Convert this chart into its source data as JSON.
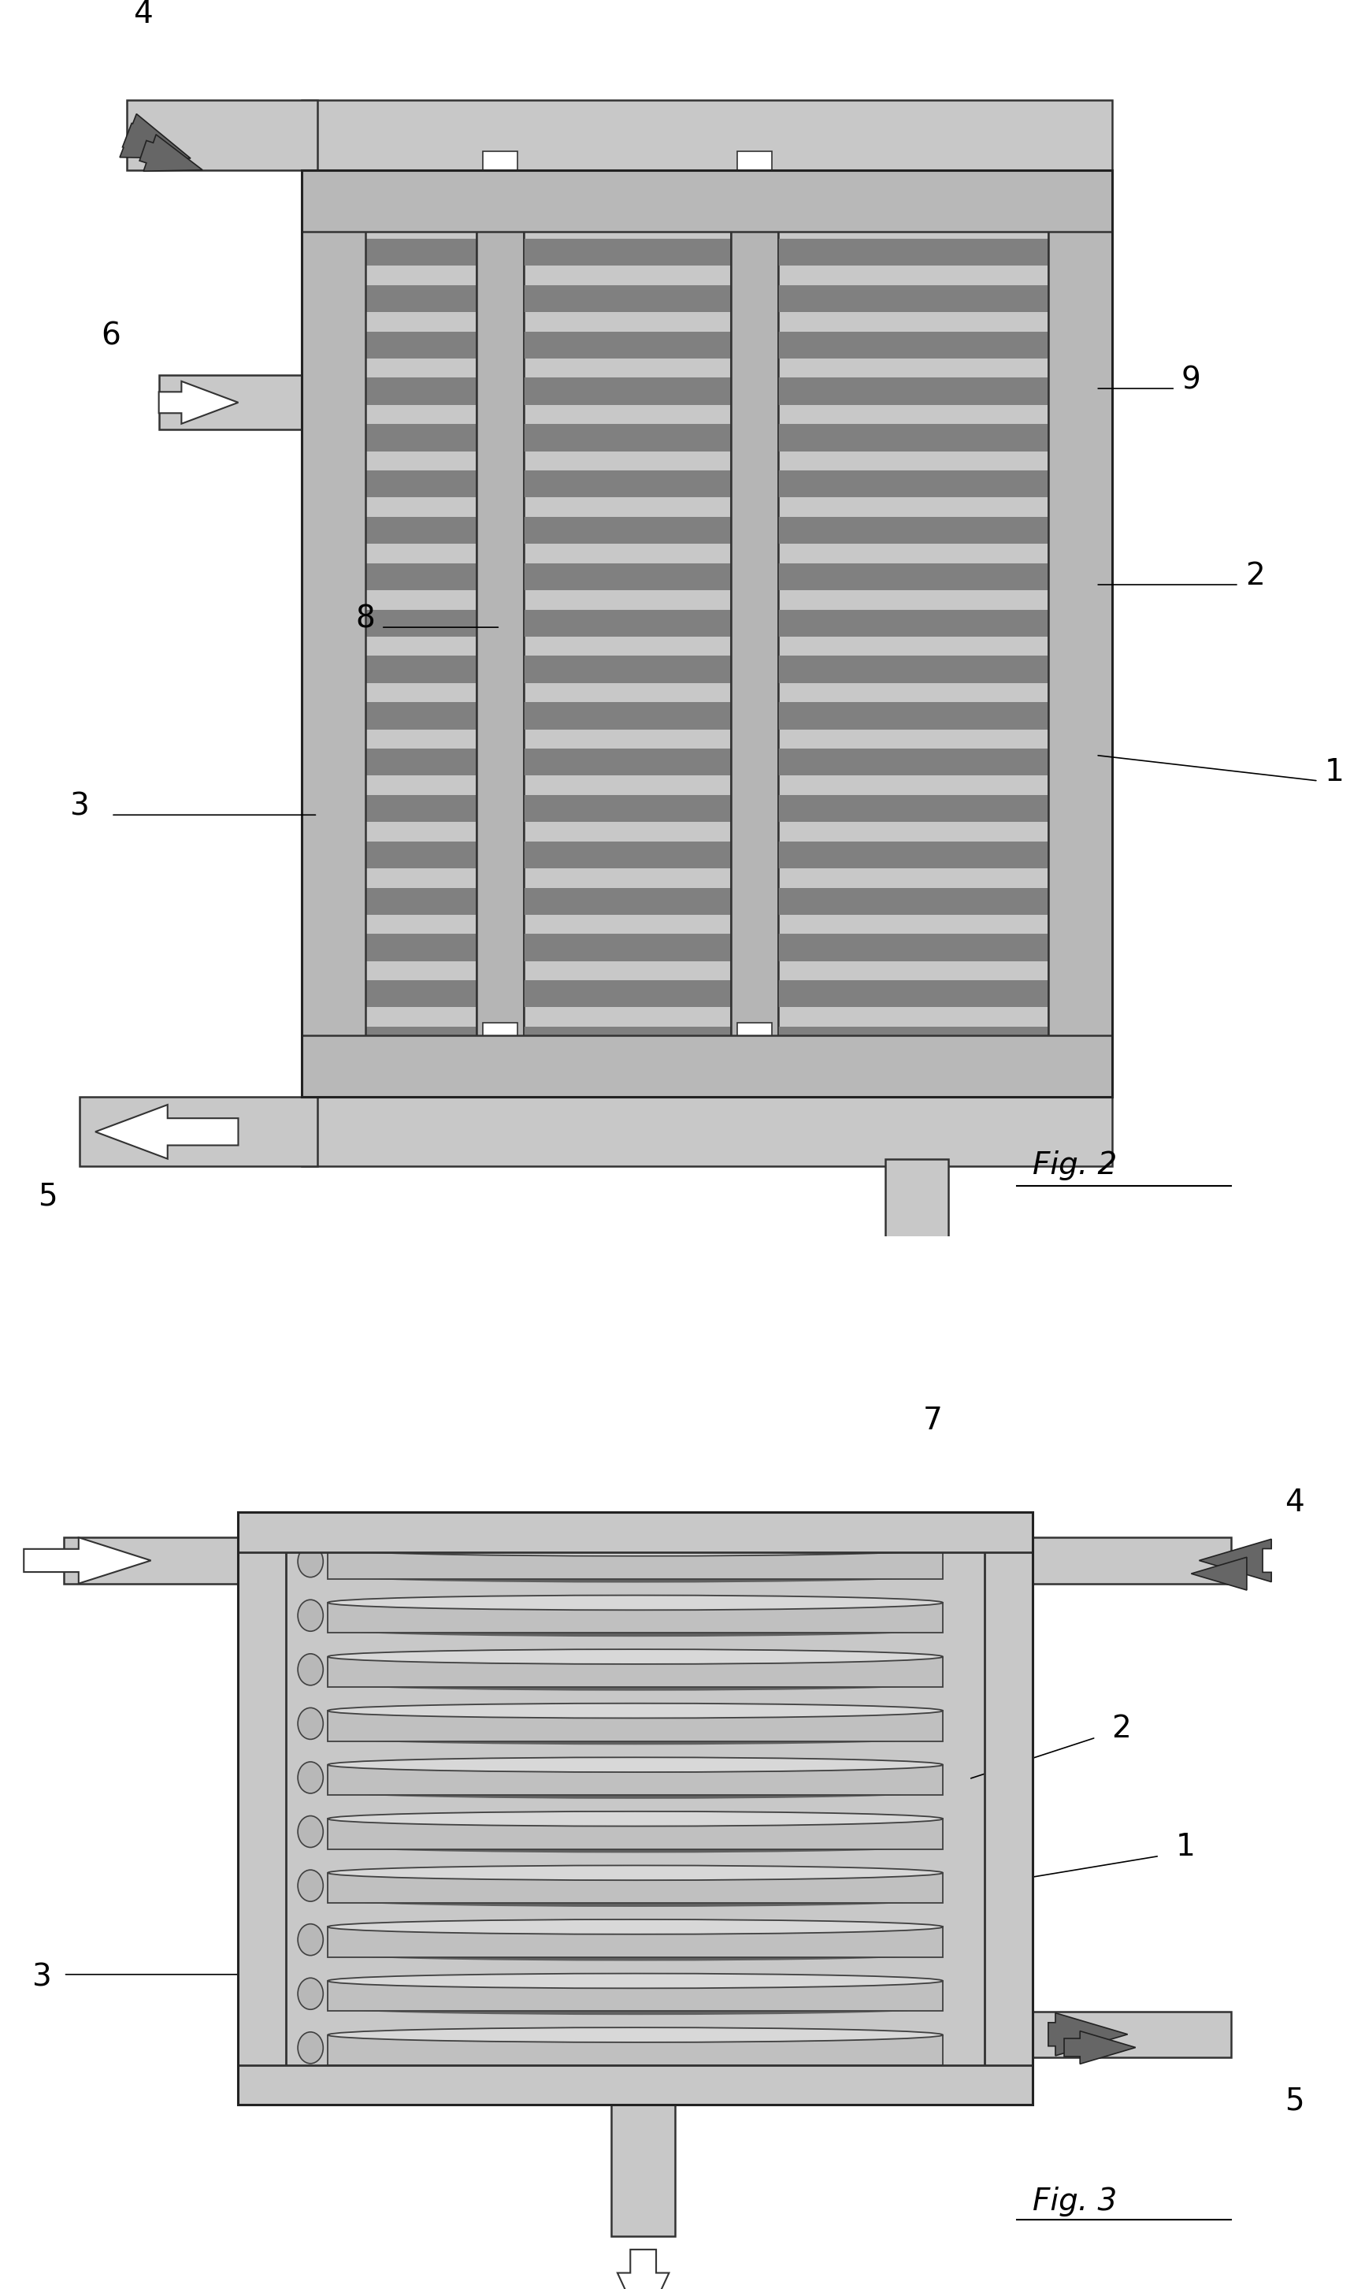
{
  "bg_color": "#ffffff",
  "fig_width": 17.14,
  "fig_height": 29.05,
  "gray_light": "#c8c8c8",
  "gray_mid": "#a8a8a8",
  "gray_dark": "#707070",
  "gray_wall": "#b8b8b8",
  "gray_pcm": "#c0c0c0",
  "gray_stripe": "#888888",
  "white": "#ffffff",
  "black": "#111111",
  "fig2_label": "Fig. 2",
  "fig3_label": "Fig. 3"
}
